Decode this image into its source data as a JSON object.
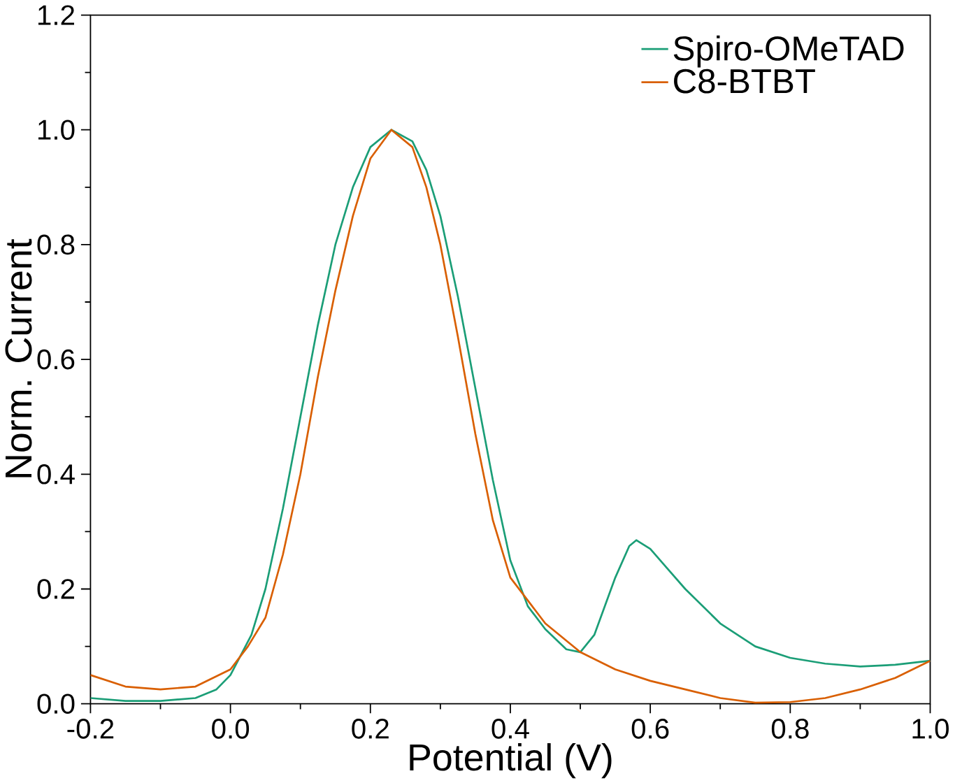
{
  "chart_data": {
    "type": "line",
    "xlabel": "Potential (V)",
    "ylabel": "Norm. Current",
    "xlim": [
      -0.2,
      1.0
    ],
    "ylim": [
      0.0,
      1.2
    ],
    "xticks": [
      -0.2,
      {
        "value": 0.0,
        "label": "0.0"
      },
      0.2,
      0.4,
      0.6,
      0.8,
      {
        "value": 1.0,
        "label": "1.0"
      }
    ],
    "yticks": [
      {
        "value": 0.0,
        "label": "0.0"
      },
      0.2,
      0.4,
      0.6,
      0.8,
      {
        "value": 1.0,
        "label": "1.0"
      },
      {
        "value": 1.2,
        "label": "1.2"
      }
    ],
    "legend": "top right",
    "grid": false,
    "marker": "none",
    "line_style": "solid",
    "series": [
      {
        "name": "Spiro-OMeTAD",
        "color": "#1b9e77",
        "x": [
          -0.2,
          -0.15,
          -0.1,
          -0.05,
          -0.02,
          0.0,
          0.03,
          0.05,
          0.075,
          0.1,
          0.125,
          0.15,
          0.175,
          0.2,
          0.23,
          0.26,
          0.28,
          0.3,
          0.325,
          0.35,
          0.375,
          0.4,
          0.425,
          0.45,
          0.48,
          0.5,
          0.52,
          0.55,
          0.57,
          0.58,
          0.6,
          0.625,
          0.65,
          0.7,
          0.75,
          0.8,
          0.85,
          0.9,
          0.95,
          1.0
        ],
        "values": [
          0.01,
          0.005,
          0.005,
          0.01,
          0.025,
          0.05,
          0.12,
          0.2,
          0.34,
          0.5,
          0.66,
          0.8,
          0.9,
          0.97,
          1.0,
          0.98,
          0.93,
          0.85,
          0.71,
          0.55,
          0.39,
          0.25,
          0.17,
          0.13,
          0.095,
          0.09,
          0.12,
          0.22,
          0.275,
          0.285,
          0.27,
          0.235,
          0.2,
          0.14,
          0.1,
          0.08,
          0.07,
          0.065,
          0.068,
          0.075
        ]
      },
      {
        "name": "C8-BTBT",
        "color": "#d95f02",
        "x": [
          -0.2,
          -0.15,
          -0.1,
          -0.05,
          0.0,
          0.025,
          0.05,
          0.075,
          0.1,
          0.125,
          0.15,
          0.175,
          0.2,
          0.23,
          0.26,
          0.28,
          0.3,
          0.325,
          0.35,
          0.375,
          0.4,
          0.45,
          0.5,
          0.55,
          0.6,
          0.65,
          0.7,
          0.75,
          0.8,
          0.85,
          0.9,
          0.95,
          1.0
        ],
        "values": [
          0.05,
          0.03,
          0.025,
          0.03,
          0.06,
          0.1,
          0.15,
          0.26,
          0.4,
          0.57,
          0.72,
          0.85,
          0.95,
          1.0,
          0.97,
          0.9,
          0.8,
          0.64,
          0.47,
          0.32,
          0.22,
          0.14,
          0.09,
          0.06,
          0.04,
          0.025,
          0.01,
          0.002,
          0.003,
          0.01,
          0.025,
          0.045,
          0.075
        ]
      }
    ]
  }
}
